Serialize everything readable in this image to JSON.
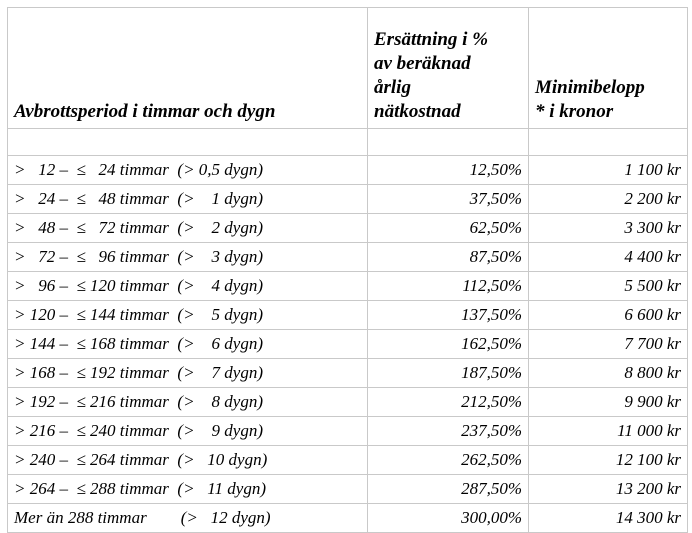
{
  "table": {
    "header": [
      [
        "Avbrottsperiod i timmar och dygn"
      ],
      [
        "Ersättning i %",
        "av beräknad",
        "årlig",
        "nätkostnad"
      ],
      [
        "Minimibelopp",
        "* i kronor"
      ]
    ],
    "rows": [
      [
        ">   12 –  ≤   24 timmar  (> 0,5 dygn)",
        "12,50%",
        "1 100 kr"
      ],
      [
        ">   24 –  ≤   48 timmar  (>    1 dygn)",
        "37,50%",
        "2 200 kr"
      ],
      [
        ">   48 –  ≤   72 timmar  (>    2 dygn)",
        "62,50%",
        "3 300 kr"
      ],
      [
        ">   72 –  ≤   96 timmar  (>    3 dygn)",
        "87,50%",
        "4 400 kr"
      ],
      [
        ">   96 –  ≤ 120 timmar  (>    4 dygn)",
        "112,50%",
        "5 500 kr"
      ],
      [
        "> 120 –  ≤ 144 timmar  (>    5 dygn)",
        "137,50%",
        "6 600 kr"
      ],
      [
        "> 144 –  ≤ 168 timmar  (>    6 dygn)",
        "162,50%",
        "7 700 kr"
      ],
      [
        "> 168 –  ≤ 192 timmar  (>    7 dygn)",
        "187,50%",
        "8 800 kr"
      ],
      [
        "> 192 –  ≤ 216 timmar  (>    8 dygn)",
        "212,50%",
        "9 900 kr"
      ],
      [
        "> 216 –  ≤ 240 timmar  (>    9 dygn)",
        "237,50%",
        "11 000 kr"
      ],
      [
        "> 240 –  ≤ 264 timmar  (>   10 dygn)",
        "262,50%",
        "12 100 kr"
      ],
      [
        "> 264 –  ≤ 288 timmar  (>   11 dygn)",
        "287,50%",
        "13 200 kr"
      ],
      [
        "Mer än 288 timmar        (>   12 dygn)",
        "300,00%",
        "14 300 kr"
      ]
    ]
  }
}
